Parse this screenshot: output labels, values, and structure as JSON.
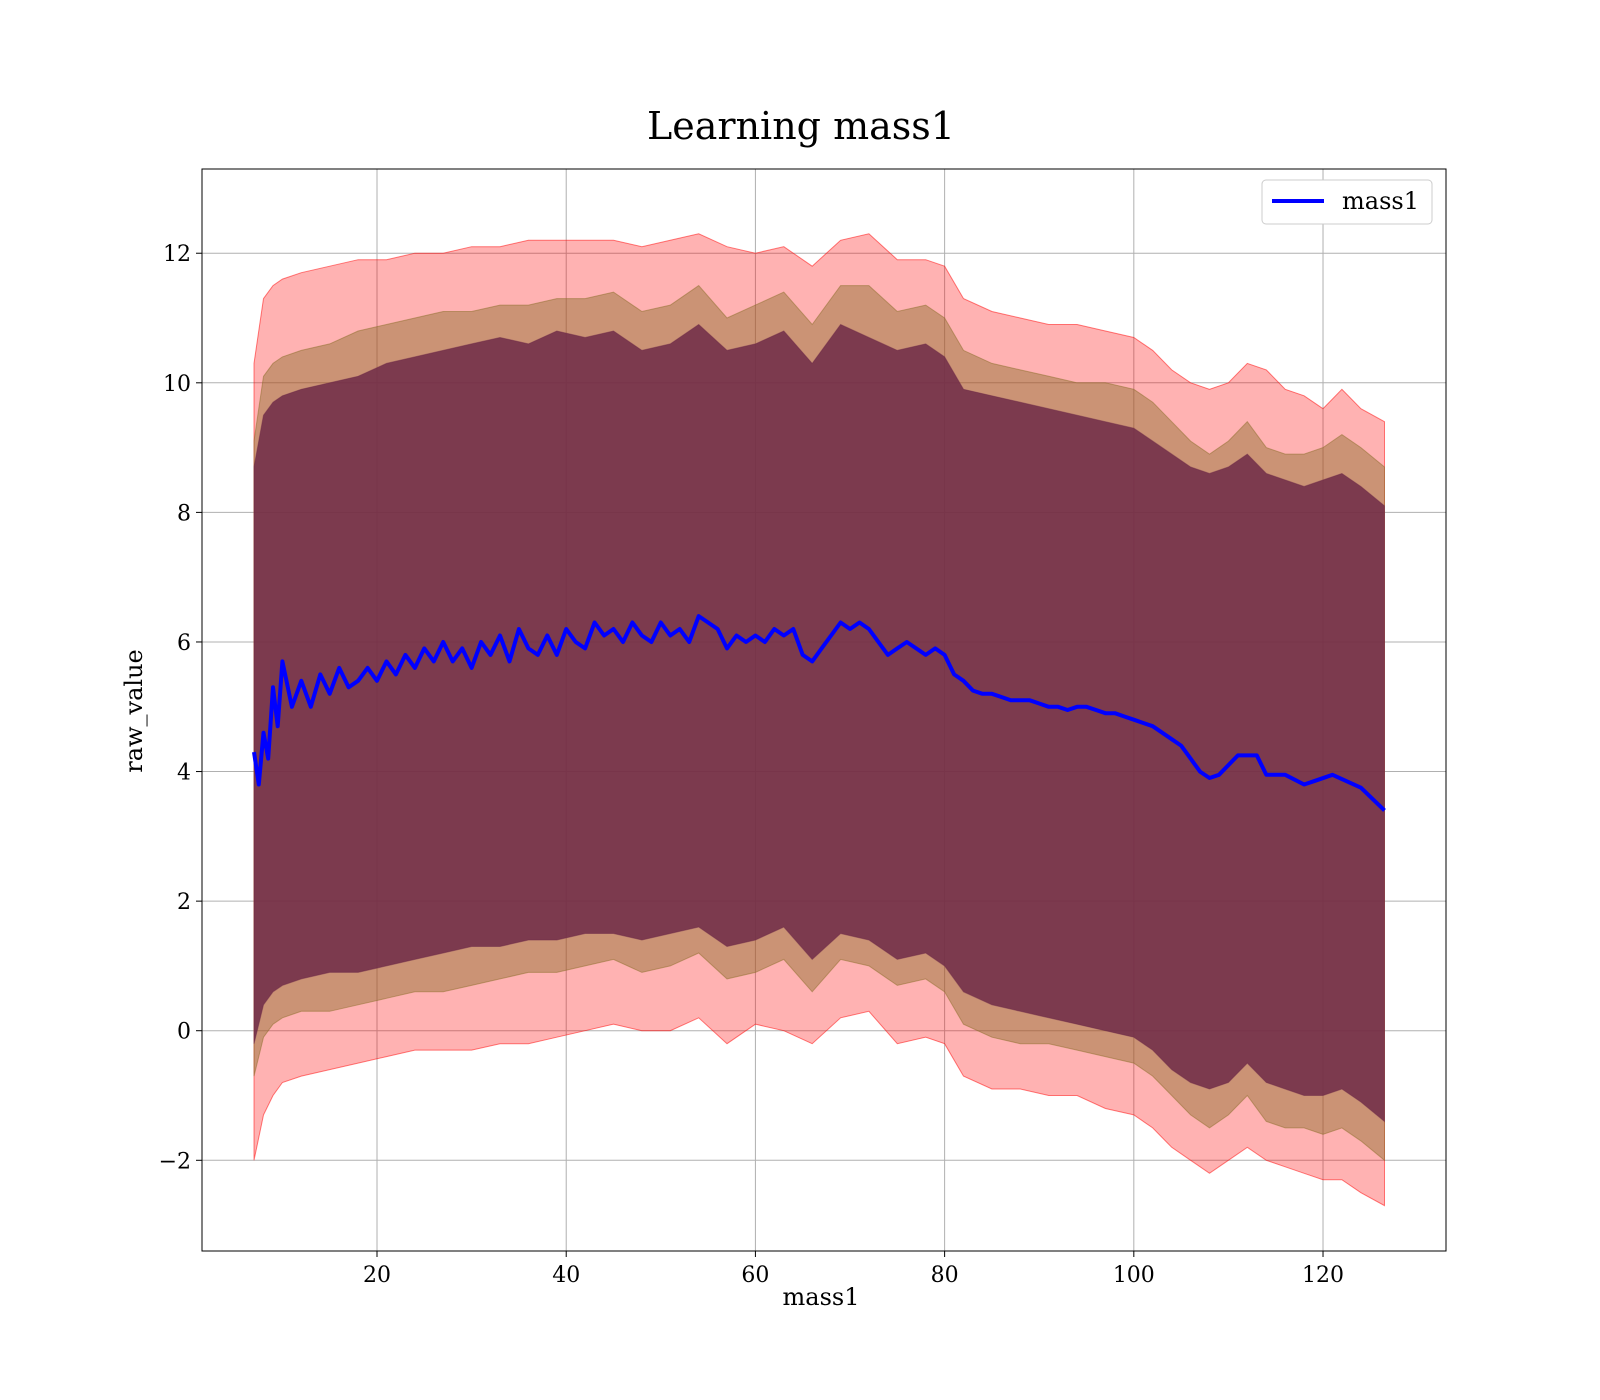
{
  "chart_data": {
    "type": "line",
    "title": "Learning mass1",
    "xlabel": "mass1",
    "ylabel": "raw_value",
    "xlim": [
      1.5,
      133
    ],
    "ylim": [
      -3.4,
      13.3
    ],
    "xticks": [
      20,
      40,
      60,
      80,
      100,
      120
    ],
    "yticks": [
      -2,
      0,
      2,
      4,
      6,
      8,
      10,
      12
    ],
    "grid": true,
    "legend": {
      "position": "top-right",
      "entries": [
        "mass1"
      ]
    },
    "colors": {
      "line": "#0000ff",
      "band_outer": "#ff0000",
      "band_middle": "#8b6d2a",
      "band_inner": "#6e2a48"
    },
    "series": [
      {
        "name": "mass1",
        "x": [
          7,
          7.5,
          8,
          8.5,
          9,
          9.5,
          10,
          11,
          12,
          13,
          14,
          15,
          16,
          17,
          18,
          19,
          20,
          21,
          22,
          23,
          24,
          25,
          26,
          27,
          28,
          29,
          30,
          31,
          32,
          33,
          34,
          35,
          36,
          37,
          38,
          39,
          40,
          41,
          42,
          43,
          44,
          45,
          46,
          47,
          48,
          49,
          50,
          51,
          52,
          53,
          54,
          55,
          56,
          57,
          58,
          59,
          60,
          61,
          62,
          63,
          64,
          65,
          66,
          67,
          68,
          69,
          70,
          71,
          72,
          73,
          74,
          75,
          76,
          77,
          78,
          79,
          80,
          81,
          82,
          83,
          84,
          85,
          86,
          87,
          88,
          89,
          90,
          91,
          92,
          93,
          94,
          95,
          96,
          97,
          98,
          99,
          100,
          101,
          102,
          103,
          104,
          105,
          106,
          107,
          108,
          109,
          110,
          111,
          112,
          113,
          114,
          116,
          118,
          119,
          121,
          124,
          126.5
        ],
        "y": [
          4.3,
          3.8,
          4.6,
          4.2,
          5.3,
          4.7,
          5.7,
          5.0,
          5.4,
          5.0,
          5.5,
          5.2,
          5.6,
          5.3,
          5.4,
          5.6,
          5.4,
          5.7,
          5.5,
          5.8,
          5.6,
          5.9,
          5.7,
          6.0,
          5.7,
          5.9,
          5.6,
          6.0,
          5.8,
          6.1,
          5.7,
          6.2,
          5.9,
          5.8,
          6.1,
          5.8,
          6.2,
          6.0,
          5.9,
          6.3,
          6.1,
          6.2,
          6.0,
          6.3,
          6.1,
          6.0,
          6.3,
          6.1,
          6.2,
          6.0,
          6.4,
          6.3,
          6.2,
          5.9,
          6.1,
          6.0,
          6.1,
          6.0,
          6.2,
          6.1,
          6.2,
          5.8,
          5.7,
          5.9,
          6.1,
          6.3,
          6.2,
          6.3,
          6.2,
          6.0,
          5.8,
          5.9,
          6.0,
          5.9,
          5.8,
          5.9,
          5.8,
          5.5,
          5.4,
          5.25,
          5.2,
          5.2,
          5.15,
          5.1,
          5.1,
          5.1,
          5.05,
          5.0,
          5.0,
          4.95,
          5.0,
          5.0,
          4.95,
          4.9,
          4.9,
          4.85,
          4.8,
          4.75,
          4.7,
          4.6,
          4.5,
          4.4,
          4.2,
          4.0,
          3.9,
          3.95,
          4.1,
          4.25,
          4.25,
          4.25,
          3.95,
          3.95,
          3.8,
          3.85,
          3.95,
          3.75,
          3.4
        ]
      }
    ],
    "bands": [
      {
        "x": [
          7,
          8,
          9,
          10,
          12,
          15,
          18,
          21,
          24,
          27,
          30,
          33,
          36,
          39,
          42,
          45,
          48,
          51,
          54,
          57,
          60,
          63,
          66,
          69,
          72,
          75,
          78,
          80,
          82,
          85,
          88,
          91,
          94,
          97,
          100,
          102,
          104,
          106,
          108,
          110,
          112,
          114,
          116,
          118,
          120,
          122,
          124,
          126.5
        ],
        "upper": [
          10.3,
          11.3,
          11.5,
          11.6,
          11.7,
          11.8,
          11.9,
          11.9,
          12.0,
          12.0,
          12.1,
          12.1,
          12.2,
          12.2,
          12.2,
          12.2,
          12.1,
          12.2,
          12.3,
          12.1,
          12.0,
          12.1,
          11.8,
          12.2,
          12.3,
          11.9,
          11.9,
          11.8,
          11.3,
          11.1,
          11.0,
          10.9,
          10.9,
          10.8,
          10.7,
          10.5,
          10.2,
          10.0,
          9.9,
          10.0,
          10.3,
          10.2,
          9.9,
          9.8,
          9.6,
          9.9,
          9.6,
          9.4
        ],
        "lower": [
          -2.0,
          -1.3,
          -1.0,
          -0.8,
          -0.7,
          -0.6,
          -0.5,
          -0.4,
          -0.3,
          -0.3,
          -0.3,
          -0.2,
          -0.2,
          -0.1,
          0.0,
          0.1,
          0.0,
          0.0,
          0.2,
          -0.2,
          0.1,
          0.0,
          -0.2,
          0.2,
          0.3,
          -0.2,
          -0.1,
          -0.2,
          -0.7,
          -0.9,
          -0.9,
          -1.0,
          -1.0,
          -1.2,
          -1.3,
          -1.5,
          -1.8,
          -2.0,
          -2.2,
          -2.0,
          -1.8,
          -2.0,
          -2.1,
          -2.2,
          -2.3,
          -2.3,
          -2.5,
          -2.7
        ]
      },
      {
        "x": [
          7,
          8,
          9,
          10,
          12,
          15,
          18,
          21,
          24,
          27,
          30,
          33,
          36,
          39,
          42,
          45,
          48,
          51,
          54,
          57,
          60,
          63,
          66,
          69,
          72,
          75,
          78,
          80,
          82,
          85,
          88,
          91,
          94,
          97,
          100,
          102,
          104,
          106,
          108,
          110,
          112,
          114,
          116,
          118,
          120,
          122,
          124,
          126.5
        ],
        "upper": [
          9.1,
          10.1,
          10.3,
          10.4,
          10.5,
          10.6,
          10.8,
          10.9,
          11.0,
          11.1,
          11.1,
          11.2,
          11.2,
          11.3,
          11.3,
          11.4,
          11.1,
          11.2,
          11.5,
          11.0,
          11.2,
          11.4,
          10.9,
          11.5,
          11.5,
          11.1,
          11.2,
          11.0,
          10.5,
          10.3,
          10.2,
          10.1,
          10.0,
          10.0,
          9.9,
          9.7,
          9.4,
          9.1,
          8.9,
          9.1,
          9.4,
          9.0,
          8.9,
          8.9,
          9.0,
          9.2,
          9.0,
          8.7
        ],
        "lower": [
          -0.7,
          -0.1,
          0.1,
          0.2,
          0.3,
          0.3,
          0.4,
          0.5,
          0.6,
          0.6,
          0.7,
          0.8,
          0.9,
          0.9,
          1.0,
          1.1,
          0.9,
          1.0,
          1.2,
          0.8,
          0.9,
          1.1,
          0.6,
          1.1,
          1.0,
          0.7,
          0.8,
          0.6,
          0.1,
          -0.1,
          -0.2,
          -0.2,
          -0.3,
          -0.4,
          -0.5,
          -0.7,
          -1.0,
          -1.3,
          -1.5,
          -1.3,
          -1.0,
          -1.4,
          -1.5,
          -1.5,
          -1.6,
          -1.5,
          -1.7,
          -2.0
        ]
      },
      {
        "x": [
          7,
          8,
          9,
          10,
          12,
          15,
          18,
          21,
          24,
          27,
          30,
          33,
          36,
          39,
          42,
          45,
          48,
          51,
          54,
          57,
          60,
          63,
          66,
          69,
          72,
          75,
          78,
          80,
          82,
          85,
          88,
          91,
          94,
          97,
          100,
          102,
          104,
          106,
          108,
          110,
          112,
          114,
          116,
          118,
          120,
          122,
          124,
          126.5
        ],
        "upper": [
          8.7,
          9.5,
          9.7,
          9.8,
          9.9,
          10.0,
          10.1,
          10.3,
          10.4,
          10.5,
          10.6,
          10.7,
          10.6,
          10.8,
          10.7,
          10.8,
          10.5,
          10.6,
          10.9,
          10.5,
          10.6,
          10.8,
          10.3,
          10.9,
          10.7,
          10.5,
          10.6,
          10.4,
          9.9,
          9.8,
          9.7,
          9.6,
          9.5,
          9.4,
          9.3,
          9.1,
          8.9,
          8.7,
          8.6,
          8.7,
          8.9,
          8.6,
          8.5,
          8.4,
          8.5,
          8.6,
          8.4,
          8.1
        ],
        "lower": [
          -0.2,
          0.4,
          0.6,
          0.7,
          0.8,
          0.9,
          0.9,
          1.0,
          1.1,
          1.2,
          1.3,
          1.3,
          1.4,
          1.4,
          1.5,
          1.5,
          1.4,
          1.5,
          1.6,
          1.3,
          1.4,
          1.6,
          1.1,
          1.5,
          1.4,
          1.1,
          1.2,
          1.0,
          0.6,
          0.4,
          0.3,
          0.2,
          0.1,
          0.0,
          -0.1,
          -0.3,
          -0.6,
          -0.8,
          -0.9,
          -0.8,
          -0.5,
          -0.8,
          -0.9,
          -1.0,
          -1.0,
          -0.9,
          -1.1,
          -1.4
        ]
      }
    ]
  }
}
